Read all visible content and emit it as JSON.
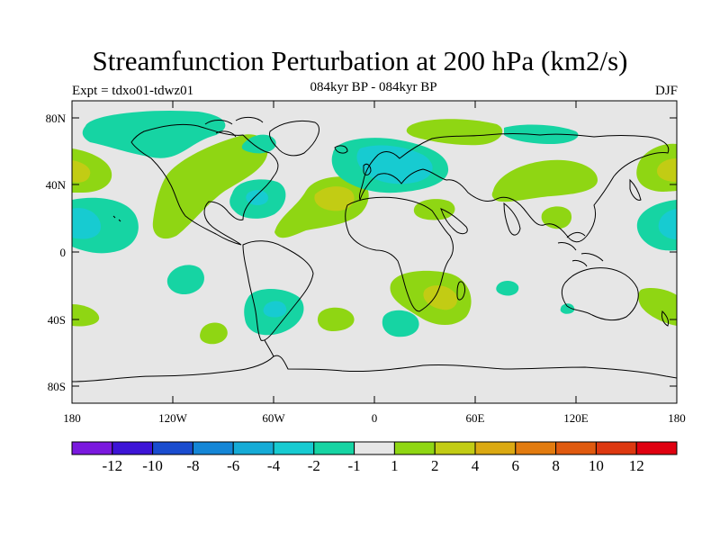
{
  "header": {
    "title": "Streamfunction Perturbation at 200 hPa (km2/s)",
    "left_label": "Expt = tdxo01-tdwz01",
    "center_label": "084kyr BP - 084kyr BP",
    "right_label": "DJF"
  },
  "map": {
    "projection": "cylindrical-equidistant",
    "background_color": "#e6e6e6",
    "coastline_color": "#000000",
    "x_ticks": [
      "180",
      "120W",
      "60W",
      "0",
      "60E",
      "120E",
      "180"
    ],
    "y_ticks": [
      "80N",
      "40N",
      "0",
      "40S",
      "80S"
    ]
  },
  "colorbar": {
    "colors": [
      "#7a19de",
      "#3d14d6",
      "#1a4ccf",
      "#1486d6",
      "#15abd6",
      "#17cbd1",
      "#16d4a3",
      "#e6e6e6",
      "#8fd613",
      "#c2cc14",
      "#dba912",
      "#e27b0f",
      "#e05a0f",
      "#dd3810",
      "#e00010"
    ],
    "labels": [
      "-12",
      "-10",
      "-8",
      "-6",
      "-4",
      "-2",
      "-1",
      "1",
      "2",
      "4",
      "6",
      "8",
      "10",
      "12"
    ]
  },
  "chart_data": {
    "type": "contour-map",
    "variable": "Streamfunction Perturbation at 200 hPa",
    "units": "km2/s",
    "season": "DJF",
    "levels": [
      -12,
      -10,
      -8,
      -6,
      -4,
      -2,
      -1,
      1,
      2,
      4,
      6,
      8,
      10,
      12
    ],
    "lon_range": [
      -180,
      180
    ],
    "lat_range": [
      -90,
      90
    ],
    "regions": [
      {
        "name": "arctic-negative-west",
        "level": -1,
        "lon": -150,
        "lat": 73
      },
      {
        "name": "north-pacific-positive",
        "level": 2,
        "lon": -170,
        "lat": 50
      },
      {
        "name": "north-pacific-core",
        "level": 4,
        "lon": -176,
        "lat": 51
      },
      {
        "name": "tropical-pacific-negative",
        "level": -2,
        "lon": -170,
        "lat": 20
      },
      {
        "name": "north-america-positive",
        "level": 2,
        "lon": -105,
        "lat": 45
      },
      {
        "name": "caribbean-negative",
        "level": -2,
        "lon": -75,
        "lat": 35
      },
      {
        "name": "north-atlantic-positive",
        "level": 4,
        "lon": -28,
        "lat": 28
      },
      {
        "name": "europe-negative",
        "level": -2,
        "lon": 8,
        "lat": 56
      },
      {
        "name": "arctic-positive",
        "level": 2,
        "lon": 40,
        "lat": 75
      },
      {
        "name": "siberia-positive",
        "level": 2,
        "lon": 80,
        "lat": 45
      },
      {
        "name": "mideast-positive",
        "level": 2,
        "lon": 35,
        "lat": 26
      },
      {
        "name": "south-africa-positive",
        "level": 4,
        "lon": 40,
        "lat": -25
      },
      {
        "name": "south-america-negative",
        "level": -2,
        "lon": -60,
        "lat": -37
      },
      {
        "name": "south-pacific-negative",
        "level": -1,
        "lon": -110,
        "lat": -20
      },
      {
        "name": "east-pacific-positive",
        "level": 4,
        "lon": 175,
        "lat": 50
      },
      {
        "name": "west-pacific-negative",
        "level": -2,
        "lon": 180,
        "lat": 20
      }
    ]
  }
}
